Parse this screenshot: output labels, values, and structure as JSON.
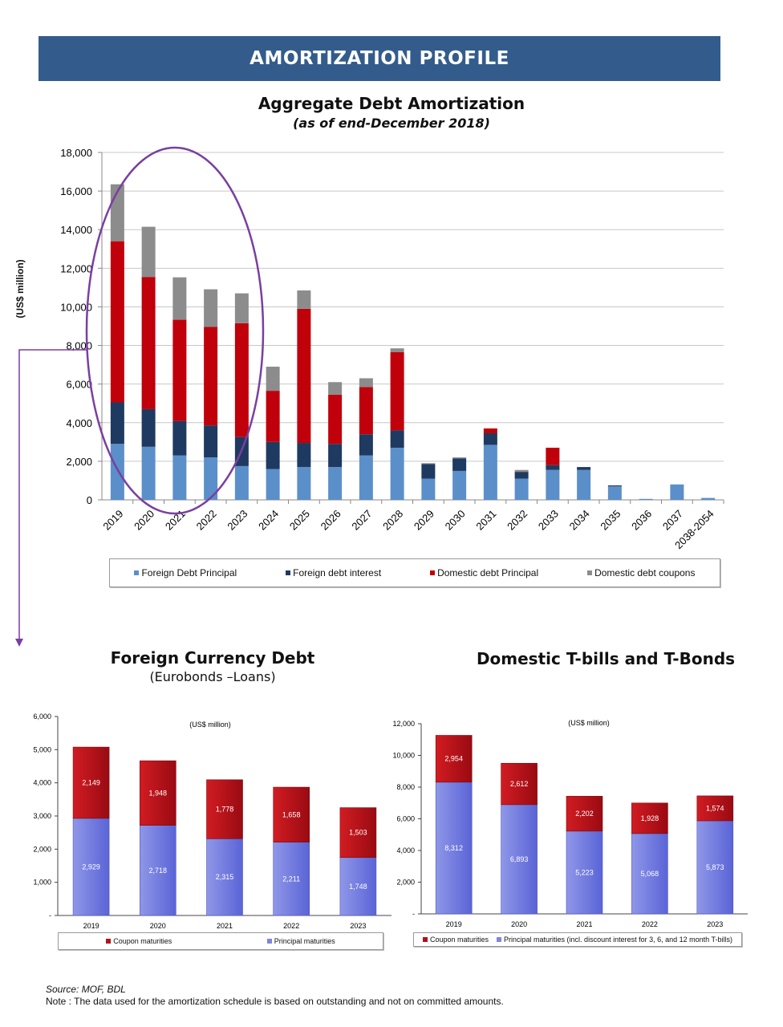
{
  "banner": {
    "title": "AMORTIZATION PROFILE"
  },
  "main_chart": {
    "title": "Aggregate Debt Amortization",
    "subtitle": "(as of end-December 2018)",
    "ylabel": "(US$ million)"
  },
  "fc_chart": {
    "title": "Foreign Currency Debt",
    "subtitle": "(Eurobonds –Loans)",
    "unit": "(US$ million)"
  },
  "dom_chart": {
    "title": "Domestic T-bills and T-Bonds",
    "unit": "(US$ million)"
  },
  "colors": {
    "foreign_principal": "#5b8fc9",
    "foreign_interest": "#1f3a60",
    "domestic_principal": "#c0000a",
    "domestic_coupons": "#8c8c8c",
    "coupon_red": "#b3121b",
    "principal_blue": "#7d86e0",
    "annotation": "#7a3fa0"
  },
  "legends": {
    "main": [
      "Foreign Debt Principal",
      "Foreign debt interest",
      "Domestic debt Principal",
      "Domestic debt coupons"
    ],
    "fc": [
      "Coupon maturities",
      "Principal maturities"
    ],
    "dom": [
      "Coupon maturities",
      "Principal maturities (incl. discount interest for 3, 6, and 12 month T-bills)"
    ]
  },
  "footer": {
    "source": "Source: MOF, BDL",
    "note": "Note : The data used for the amortization schedule is based on outstanding and not on committed amounts."
  },
  "chart_data": [
    {
      "type": "bar",
      "stacked": true,
      "title": "Aggregate Debt Amortization",
      "subtitle": "(as of end-December 2018)",
      "xlabel": "",
      "ylabel": "(US$ million)",
      "ylim": [
        0,
        18000
      ],
      "yticks": [
        "0",
        "2,000",
        "4,000",
        "6,000",
        "8,000",
        "10,000",
        "12,000",
        "14,000",
        "16,000",
        "18,000"
      ],
      "grid": true,
      "legend": "bottom",
      "categories": [
        "2019",
        "2020",
        "2021",
        "2022",
        "2023",
        "2024",
        "2025",
        "2026",
        "2027",
        "2028",
        "2029",
        "2030",
        "2031",
        "2032",
        "2033",
        "2034",
        "2035",
        "2036",
        "2037",
        "2038-2054"
      ],
      "series": [
        {
          "name": "Foreign Debt Principal",
          "values": [
            2900,
            2750,
            2300,
            2200,
            1750,
            1600,
            1700,
            1700,
            2300,
            2700,
            1100,
            1500,
            2850,
            1100,
            1550,
            1550,
            700,
            50,
            800,
            100
          ]
        },
        {
          "name": "Foreign debt interest",
          "values": [
            2150,
            1950,
            1780,
            1660,
            1500,
            1400,
            1250,
            1200,
            1100,
            900,
            750,
            650,
            600,
            350,
            250,
            150,
            50,
            0,
            0,
            0
          ]
        },
        {
          "name": "Domestic debt Principal",
          "values": [
            8350,
            6850,
            5250,
            5100,
            5900,
            2650,
            6950,
            2550,
            2450,
            4050,
            0,
            0,
            250,
            0,
            900,
            0,
            0,
            0,
            0,
            0
          ]
        },
        {
          "name": "Domestic debt coupons",
          "values": [
            2950,
            2600,
            2200,
            1950,
            1550,
            1250,
            950,
            650,
            450,
            200,
            50,
            50,
            0,
            100,
            0,
            0,
            0,
            0,
            0,
            0
          ]
        }
      ]
    },
    {
      "type": "bar",
      "stacked": true,
      "title": "Foreign Currency Debt",
      "subtitle": "(Eurobonds –Loans)",
      "unit": "(US$ million)",
      "ylim": [
        0,
        6000
      ],
      "yticks": [
        "-",
        "1,000",
        "2,000",
        "3,000",
        "4,000",
        "5,000",
        "6,000"
      ],
      "legend": "bottom",
      "categories": [
        "2019",
        "2020",
        "2021",
        "2022",
        "2023"
      ],
      "series": [
        {
          "name": "Principal maturities",
          "values": [
            2929,
            2718,
            2315,
            2211,
            1748
          ],
          "labels": [
            "2,929",
            "2,718",
            "2,315",
            "2,211",
            "1,748"
          ]
        },
        {
          "name": "Coupon maturities",
          "values": [
            2149,
            1948,
            1778,
            1658,
            1503
          ],
          "labels": [
            "2,149",
            "1,948",
            "1,778",
            "1,658",
            "1,503"
          ]
        }
      ]
    },
    {
      "type": "bar",
      "stacked": true,
      "title": "Domestic T-bills and T-Bonds",
      "unit": "(US$ million)",
      "ylim": [
        0,
        12000
      ],
      "yticks": [
        "-",
        "2,000",
        "4,000",
        "6,000",
        "8,000",
        "10,000",
        "12,000"
      ],
      "legend": "bottom",
      "categories": [
        "2019",
        "2020",
        "2021",
        "2022",
        "2023"
      ],
      "series": [
        {
          "name": "Principal maturities (incl. discount interest for 3, 6, and 12 month T-bills)",
          "values": [
            8312,
            6893,
            5223,
            5068,
            5873
          ],
          "labels": [
            "8,312",
            "6,893",
            "5,223",
            "5,068",
            "5,873"
          ]
        },
        {
          "name": "Coupon maturities",
          "values": [
            2954,
            2612,
            2202,
            1928,
            1574
          ],
          "labels": [
            "2,954",
            "2,612",
            "2,202",
            "1,928",
            "1,574"
          ]
        }
      ]
    }
  ]
}
